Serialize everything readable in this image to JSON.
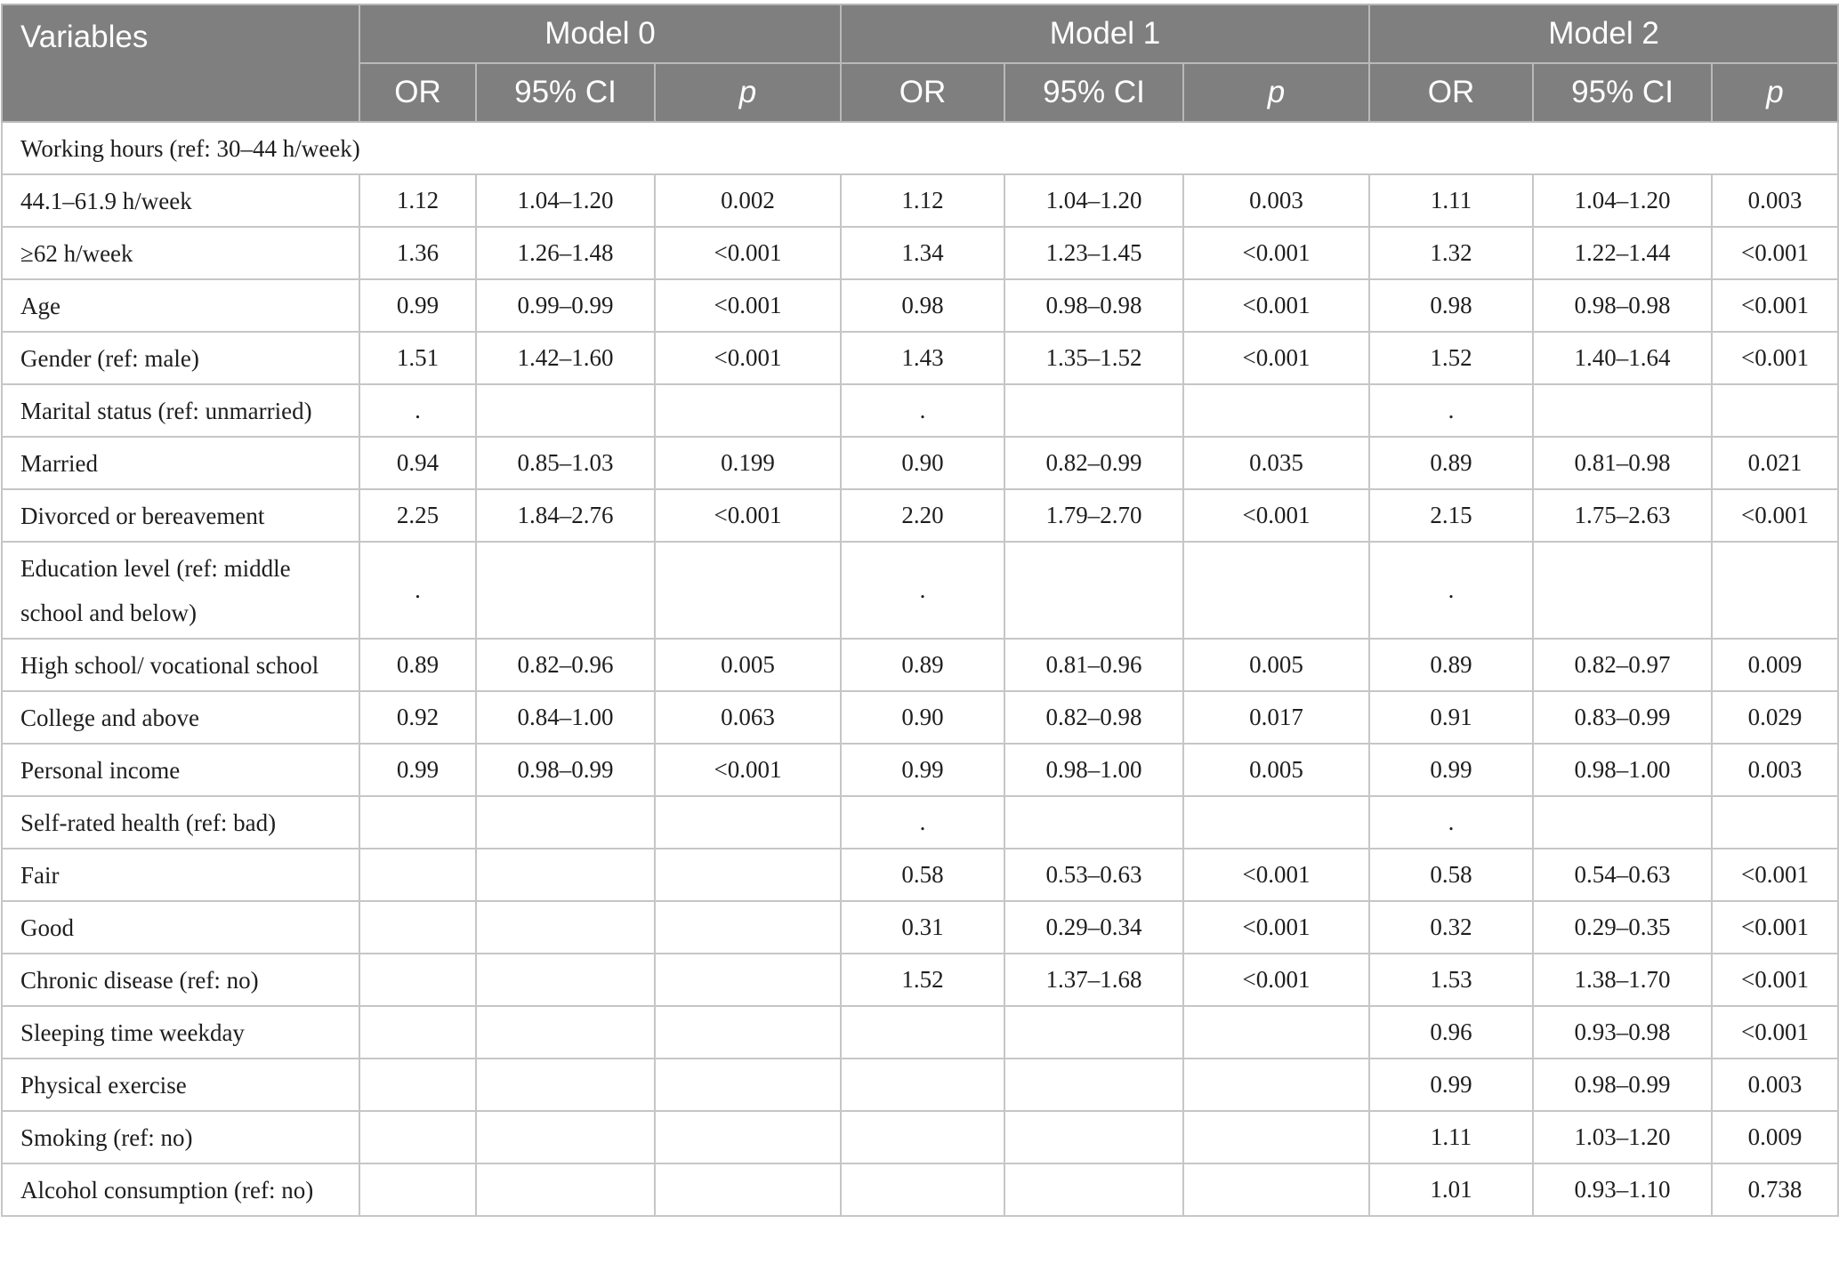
{
  "header": {
    "variables": "Variables",
    "models": [
      "Model 0",
      "Model 1",
      "Model 2"
    ],
    "subcols": [
      "OR",
      "95% CI",
      "p"
    ]
  },
  "section_title": "Working hours (ref: 30–44 h/week)",
  "rows": [
    {
      "label": "44.1–61.9 h/week",
      "cells": [
        "1.12",
        "1.04–1.20",
        "0.002",
        "1.12",
        "1.04–1.20",
        "0.003",
        "1.11",
        "1.04–1.20",
        "0.003"
      ]
    },
    {
      "label": "≥62 h/week",
      "cells": [
        "1.36",
        "1.26–1.48",
        "<0.001",
        "1.34",
        "1.23–1.45",
        "<0.001",
        "1.32",
        "1.22–1.44",
        "<0.001"
      ]
    },
    {
      "label": "Age",
      "cells": [
        "0.99",
        "0.99–0.99",
        "<0.001",
        "0.98",
        "0.98–0.98",
        "<0.001",
        "0.98",
        "0.98–0.98",
        "<0.001"
      ]
    },
    {
      "label": "Gender (ref: male)",
      "cells": [
        "1.51",
        "1.42–1.60",
        "<0.001",
        "1.43",
        "1.35–1.52",
        "<0.001",
        "1.52",
        "1.40–1.64",
        "<0.001"
      ]
    },
    {
      "label": "Marital status (ref: unmarried)",
      "cells": [
        ".",
        "",
        "",
        ".",
        "",
        "",
        ".",
        "",
        ""
      ]
    },
    {
      "label": "Married",
      "cells": [
        "0.94",
        "0.85–1.03",
        "0.199",
        "0.90",
        "0.82–0.99",
        "0.035",
        "0.89",
        "0.81–0.98",
        "0.021"
      ]
    },
    {
      "label": "Divorced or bereavement",
      "cells": [
        "2.25",
        "1.84–2.76",
        "<0.001",
        "2.20",
        "1.79–2.70",
        "<0.001",
        "2.15",
        "1.75–2.63",
        "<0.001"
      ]
    },
    {
      "label": "Education level (ref: middle school and below)",
      "cells": [
        ".",
        "",
        "",
        ".",
        "",
        "",
        ".",
        "",
        ""
      ],
      "tall": true
    },
    {
      "label": "High school/ vocational school",
      "cells": [
        "0.89",
        "0.82–0.96",
        "0.005",
        "0.89",
        "0.81–0.96",
        "0.005",
        "0.89",
        "0.82–0.97",
        "0.009"
      ]
    },
    {
      "label": "College and above",
      "cells": [
        "0.92",
        "0.84–1.00",
        "0.063",
        "0.90",
        "0.82–0.98",
        "0.017",
        "0.91",
        "0.83–0.99",
        "0.029"
      ]
    },
    {
      "label": "Personal income",
      "cells": [
        "0.99",
        "0.98–0.99",
        "<0.001",
        "0.99",
        "0.98–1.00",
        "0.005",
        "0.99",
        "0.98–1.00",
        "0.003"
      ]
    },
    {
      "label": "Self-rated health (ref: bad)",
      "cells": [
        "",
        "",
        "",
        ".",
        "",
        "",
        ".",
        "",
        ""
      ]
    },
    {
      "label": "Fair",
      "cells": [
        "",
        "",
        "",
        "0.58",
        "0.53–0.63",
        "<0.001",
        "0.58",
        "0.54–0.63",
        "<0.001"
      ]
    },
    {
      "label": "Good",
      "cells": [
        "",
        "",
        "",
        "0.31",
        "0.29–0.34",
        "<0.001",
        "0.32",
        "0.29–0.35",
        "<0.001"
      ]
    },
    {
      "label": "Chronic disease (ref: no)",
      "cells": [
        "",
        "",
        "",
        "1.52",
        "1.37–1.68",
        "<0.001",
        "1.53",
        "1.38–1.70",
        "<0.001"
      ]
    },
    {
      "label": "Sleeping time weekday",
      "cells": [
        "",
        "",
        "",
        "",
        "",
        "",
        "0.96",
        "0.93–0.98",
        "<0.001"
      ]
    },
    {
      "label": "Physical exercise",
      "cells": [
        "",
        "",
        "",
        "",
        "",
        "",
        "0.99",
        "0.98–0.99",
        "0.003"
      ]
    },
    {
      "label": "Smoking (ref: no)",
      "cells": [
        "",
        "",
        "",
        "",
        "",
        "",
        "1.11",
        "1.03–1.20",
        "0.009"
      ]
    },
    {
      "label": "Alcohol consumption (ref: no)",
      "cells": [
        "",
        "",
        "",
        "",
        "",
        "",
        "1.01",
        "0.93–1.10",
        "0.738"
      ]
    }
  ]
}
